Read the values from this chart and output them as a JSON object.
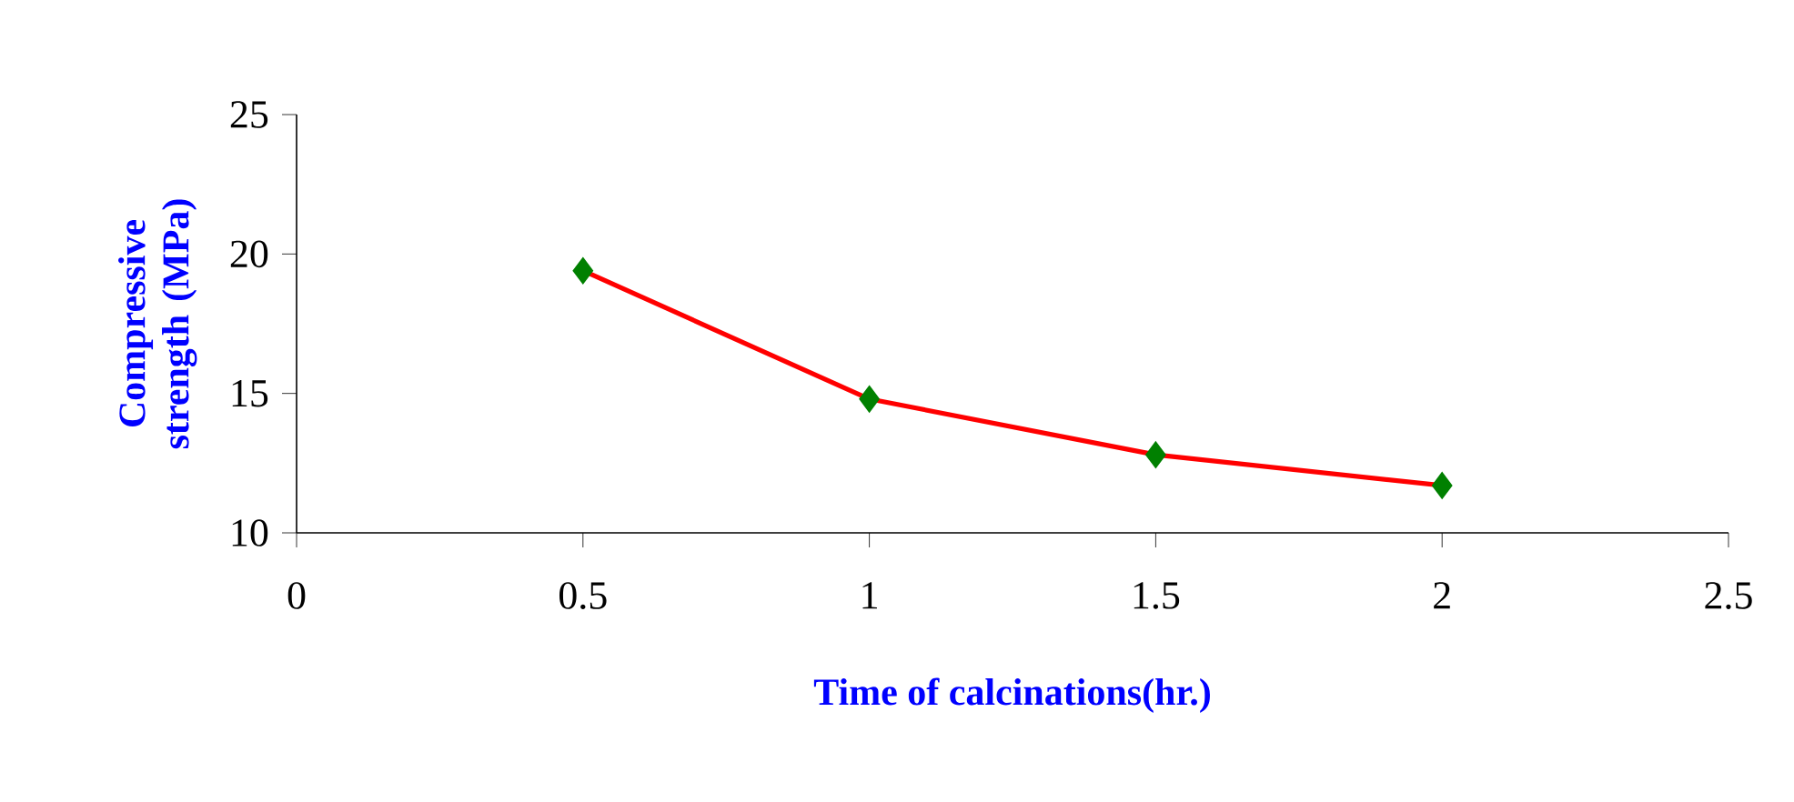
{
  "chart_data": {
    "type": "line",
    "xlabel": "Time of calcinations(hr.)",
    "ylabel": "Compressive strength (MPa)",
    "x": [
      0.5,
      1,
      1.5,
      2
    ],
    "series": [
      {
        "color": "#ff0000",
        "colors": [
          "#008000",
          "#008000",
          "#008000",
          "#008000"
        ],
        "values": [
          19.4,
          14.8,
          12.8,
          11.7
        ]
      }
    ],
    "xlim": [
      0,
      2.5
    ],
    "xticks": [
      0,
      0.5,
      1,
      1.5,
      2,
      2.5
    ],
    "ylim": [
      10,
      25
    ],
    "yticks": [
      10,
      15,
      20,
      25
    ],
    "marker": "diamond",
    "line_style": "solid",
    "grid": false
  }
}
